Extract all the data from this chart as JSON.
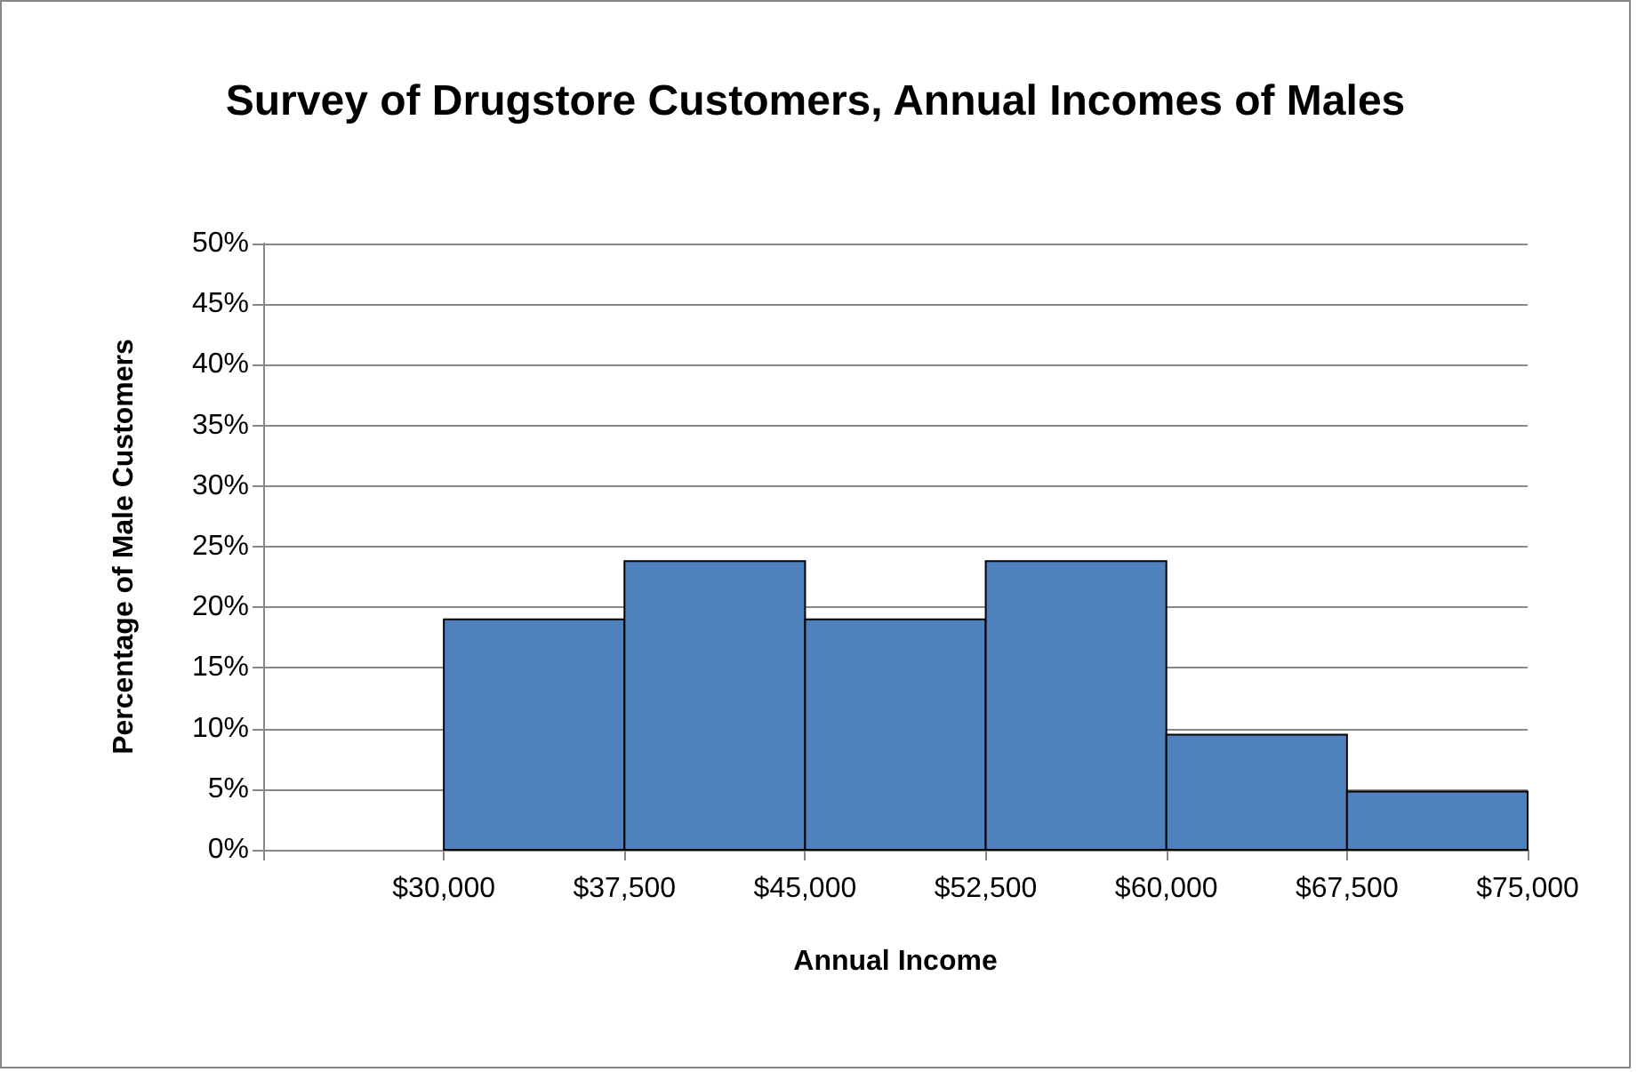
{
  "chart_data": {
    "type": "histogram",
    "title": "Survey of Drugstore Customers, Annual Incomes of Males",
    "xlabel": "Annual Income",
    "ylabel": "Percentage of Male Customers",
    "bins": [
      30000,
      37500,
      45000,
      52500,
      60000,
      67500,
      75000
    ],
    "values": [
      19,
      23.8,
      19,
      23.8,
      9.5,
      4.8
    ],
    "color": "#4f81bd",
    "xlim": [
      22500,
      75000
    ],
    "xticks": [
      {
        "value": 22500,
        "label": null
      },
      {
        "value": 30000,
        "label": "$30,000"
      },
      {
        "value": 37500,
        "label": "$37,500"
      },
      {
        "value": 45000,
        "label": "$45,000"
      },
      {
        "value": 52500,
        "label": "$52,500"
      },
      {
        "value": 60000,
        "label": "$60,000"
      },
      {
        "value": 67500,
        "label": "$67,500"
      },
      {
        "value": 75000,
        "label": "$75,000"
      }
    ],
    "ylim": [
      0,
      50
    ],
    "yticks": [
      {
        "value": 0,
        "label": "0%"
      },
      {
        "value": 5,
        "label": "5%"
      },
      {
        "value": 10,
        "label": "10%"
      },
      {
        "value": 15,
        "label": "15%"
      },
      {
        "value": 20,
        "label": "20%"
      },
      {
        "value": 25,
        "label": "25%"
      },
      {
        "value": 30,
        "label": "30%"
      },
      {
        "value": 35,
        "label": "35%"
      },
      {
        "value": 40,
        "label": "40%"
      },
      {
        "value": 45,
        "label": "45%"
      },
      {
        "value": 50,
        "label": "50%"
      }
    ],
    "grid": "y"
  }
}
